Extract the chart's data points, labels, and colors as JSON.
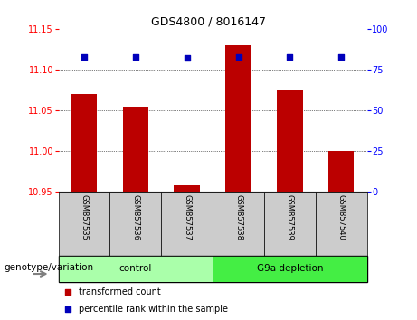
{
  "title": "GDS4800 / 8016147",
  "samples": [
    "GSM857535",
    "GSM857536",
    "GSM857537",
    "GSM857538",
    "GSM857539",
    "GSM857540"
  ],
  "bar_values": [
    11.07,
    11.055,
    10.958,
    11.13,
    11.075,
    11.0
  ],
  "bar_bottom": 10.95,
  "bar_color": "#bb0000",
  "dot_values": [
    83,
    83,
    82,
    83,
    83,
    83
  ],
  "dot_color": "#0000bb",
  "ylim_left": [
    10.95,
    11.15
  ],
  "ylim_right": [
    0,
    100
  ],
  "yticks_left": [
    10.95,
    11.0,
    11.05,
    11.1,
    11.15
  ],
  "yticks_right": [
    0,
    25,
    50,
    75,
    100
  ],
  "group_label": "genotype/variation",
  "control_label": "control",
  "g9a_label": "G9a depletion",
  "control_color": "#aaffaa",
  "g9a_color": "#44ee44",
  "tick_bg_color": "#cccccc",
  "bar_width": 0.5,
  "dot_size": 25,
  "legend_red_label": "transformed count",
  "legend_blue_label": "percentile rank within the sample",
  "title_fontsize": 9,
  "tick_label_fontsize": 6,
  "group_label_fontsize": 7.5,
  "group_text_fontsize": 7.5,
  "legend_fontsize": 7
}
